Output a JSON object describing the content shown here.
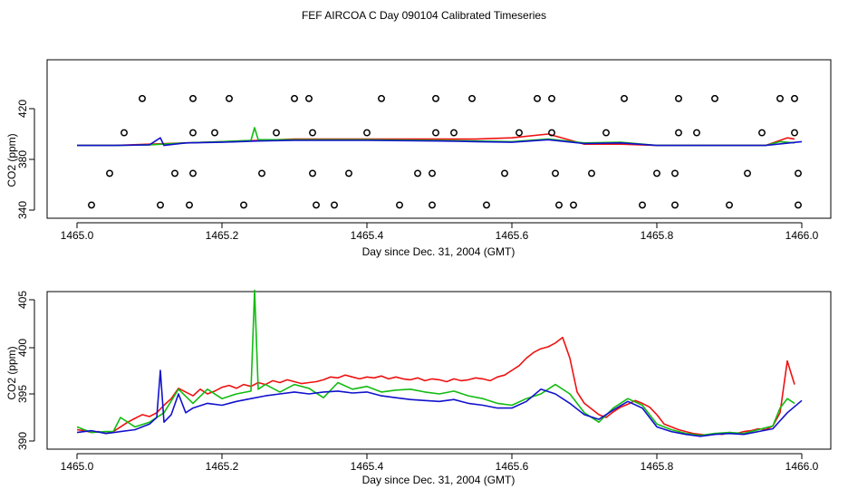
{
  "title": "FEF AIRCOA C  Day 090104  Calibrated Timeseries",
  "colors": {
    "red": "#ee1111",
    "green": "#11bb11",
    "blue": "#1111cc",
    "axis": "#000000",
    "marker": "#000000"
  },
  "chart_data": [
    {
      "type": "line",
      "xlabel": "Day since Dec. 31, 2004 (GMT)",
      "ylabel": "CO2 (ppm)",
      "xlim": [
        1465.0,
        1466.0
      ],
      "ylim": [
        340,
        440
      ],
      "xticks": [
        "1465.0",
        "1465.2",
        "1465.4",
        "1465.6",
        "1465.8",
        "1466.0"
      ],
      "yticks": [
        "340",
        "380",
        "420"
      ],
      "series": [
        {
          "color": "#ee1111",
          "key": "red",
          "x": [
            1465.0,
            1465.05,
            1465.1,
            1465.15,
            1465.2,
            1465.25,
            1465.3,
            1465.35,
            1465.4,
            1465.45,
            1465.5,
            1465.55,
            1465.6,
            1465.65,
            1465.7,
            1465.75,
            1465.8,
            1465.85,
            1465.9,
            1465.95,
            1465.98,
            1465.99
          ],
          "values": [
            391,
            391,
            392,
            393,
            394,
            395,
            396,
            396,
            396,
            396,
            396,
            396,
            397,
            400,
            392,
            392,
            391,
            391,
            391,
            391,
            397,
            396
          ]
        },
        {
          "color": "#11bb11",
          "key": "green",
          "x": [
            1465.0,
            1465.05,
            1465.1,
            1465.15,
            1465.2,
            1465.24,
            1465.245,
            1465.25,
            1465.3,
            1465.4,
            1465.5,
            1465.55,
            1465.6,
            1465.65,
            1465.7,
            1465.75,
            1465.8,
            1465.85,
            1465.9,
            1465.95,
            1465.97,
            1465.99
          ],
          "values": [
            391,
            391,
            391.5,
            393,
            394,
            395,
            405,
            395.5,
            395.5,
            395.5,
            395,
            394.5,
            394,
            396,
            393,
            393.5,
            391,
            391,
            391,
            391,
            394,
            393
          ]
        },
        {
          "color": "#1111cc",
          "key": "blue",
          "x": [
            1465.0,
            1465.05,
            1465.1,
            1465.115,
            1465.12,
            1465.15,
            1465.2,
            1465.25,
            1465.3,
            1465.4,
            1465.5,
            1465.55,
            1465.6,
            1465.65,
            1465.7,
            1465.75,
            1465.8,
            1465.85,
            1465.9,
            1465.95,
            1466.0
          ],
          "values": [
            391,
            391,
            391.5,
            397,
            391,
            393,
            393.5,
            394.5,
            395,
            395,
            394.5,
            394,
            393.5,
            395.5,
            392.5,
            393,
            391,
            391,
            391,
            391,
            394
          ]
        }
      ],
      "markers": [
        {
          "x": 1465.09,
          "y": 428
        },
        {
          "x": 1465.16,
          "y": 428
        },
        {
          "x": 1465.21,
          "y": 428
        },
        {
          "x": 1465.3,
          "y": 428
        },
        {
          "x": 1465.32,
          "y": 428
        },
        {
          "x": 1465.42,
          "y": 428
        },
        {
          "x": 1465.495,
          "y": 428
        },
        {
          "x": 1465.545,
          "y": 428
        },
        {
          "x": 1465.635,
          "y": 428
        },
        {
          "x": 1465.655,
          "y": 428
        },
        {
          "x": 1465.755,
          "y": 428
        },
        {
          "x": 1465.83,
          "y": 428
        },
        {
          "x": 1465.88,
          "y": 428
        },
        {
          "x": 1465.97,
          "y": 428
        },
        {
          "x": 1465.99,
          "y": 428
        },
        {
          "x": 1465.065,
          "y": 401
        },
        {
          "x": 1465.16,
          "y": 401
        },
        {
          "x": 1465.19,
          "y": 401
        },
        {
          "x": 1465.275,
          "y": 401
        },
        {
          "x": 1465.325,
          "y": 401
        },
        {
          "x": 1465.4,
          "y": 401
        },
        {
          "x": 1465.495,
          "y": 401
        },
        {
          "x": 1465.52,
          "y": 401
        },
        {
          "x": 1465.61,
          "y": 401
        },
        {
          "x": 1465.655,
          "y": 401
        },
        {
          "x": 1465.73,
          "y": 401
        },
        {
          "x": 1465.83,
          "y": 401
        },
        {
          "x": 1465.855,
          "y": 401
        },
        {
          "x": 1465.945,
          "y": 401
        },
        {
          "x": 1465.99,
          "y": 401
        },
        {
          "x": 1465.045,
          "y": 369
        },
        {
          "x": 1465.135,
          "y": 369
        },
        {
          "x": 1465.16,
          "y": 369
        },
        {
          "x": 1465.255,
          "y": 369
        },
        {
          "x": 1465.325,
          "y": 369
        },
        {
          "x": 1465.375,
          "y": 369
        },
        {
          "x": 1465.47,
          "y": 369
        },
        {
          "x": 1465.49,
          "y": 369
        },
        {
          "x": 1465.59,
          "y": 369
        },
        {
          "x": 1465.66,
          "y": 369
        },
        {
          "x": 1465.71,
          "y": 369
        },
        {
          "x": 1465.8,
          "y": 369
        },
        {
          "x": 1465.825,
          "y": 369
        },
        {
          "x": 1465.925,
          "y": 369
        },
        {
          "x": 1465.995,
          "y": 369
        },
        {
          "x": 1465.02,
          "y": 344
        },
        {
          "x": 1465.115,
          "y": 344
        },
        {
          "x": 1465.155,
          "y": 344
        },
        {
          "x": 1465.23,
          "y": 344
        },
        {
          "x": 1465.33,
          "y": 344
        },
        {
          "x": 1465.355,
          "y": 344
        },
        {
          "x": 1465.445,
          "y": 344
        },
        {
          "x": 1465.49,
          "y": 344
        },
        {
          "x": 1465.565,
          "y": 344
        },
        {
          "x": 1465.665,
          "y": 344
        },
        {
          "x": 1465.685,
          "y": 344
        },
        {
          "x": 1465.78,
          "y": 344
        },
        {
          "x": 1465.825,
          "y": 344
        },
        {
          "x": 1465.9,
          "y": 344
        },
        {
          "x": 1465.995,
          "y": 344
        }
      ]
    },
    {
      "type": "line",
      "xlabel": "Day since Dec. 31, 2004 (GMT)",
      "ylabel": "CO2 (ppm)",
      "xlim": [
        1465.0,
        1466.0
      ],
      "ylim": [
        390,
        405
      ],
      "xticks": [
        "1465.0",
        "1465.2",
        "1465.4",
        "1465.6",
        "1465.8",
        "1466.0"
      ],
      "yticks": [
        "390",
        "395",
        "400",
        "405"
      ],
      "series": [
        {
          "color": "#ee1111",
          "key": "red",
          "x": [
            1465.0,
            1465.01,
            1465.02,
            1465.03,
            1465.04,
            1465.05,
            1465.06,
            1465.07,
            1465.08,
            1465.09,
            1465.1,
            1465.11,
            1465.12,
            1465.13,
            1465.14,
            1465.15,
            1465.16,
            1465.17,
            1465.18,
            1465.19,
            1465.2,
            1465.21,
            1465.22,
            1465.23,
            1465.24,
            1465.25,
            1465.26,
            1465.27,
            1465.28,
            1465.29,
            1465.3,
            1465.31,
            1465.32,
            1465.33,
            1465.34,
            1465.35,
            1465.36,
            1465.37,
            1465.38,
            1465.39,
            1465.4,
            1465.41,
            1465.42,
            1465.43,
            1465.44,
            1465.45,
            1465.46,
            1465.47,
            1465.48,
            1465.49,
            1465.5,
            1465.51,
            1465.52,
            1465.53,
            1465.54,
            1465.55,
            1465.56,
            1465.57,
            1465.58,
            1465.59,
            1465.6,
            1465.61,
            1465.62,
            1465.63,
            1465.64,
            1465.65,
            1465.66,
            1465.67,
            1465.68,
            1465.69,
            1465.7,
            1465.71,
            1465.72,
            1465.73,
            1465.74,
            1465.75,
            1465.76,
            1465.77,
            1465.78,
            1465.79,
            1465.8,
            1465.81,
            1465.82,
            1465.83,
            1465.84,
            1465.85,
            1465.86,
            1465.87,
            1465.88,
            1465.89,
            1465.9,
            1465.91,
            1465.92,
            1465.93,
            1465.94,
            1465.95,
            1465.96,
            1465.97,
            1465.98,
            1465.99
          ],
          "values": [
            391.2,
            391.1,
            390.9,
            391.0,
            390.8,
            391.0,
            391.5,
            392.0,
            392.4,
            392.8,
            392.6,
            393.0,
            393.8,
            394.5,
            395.6,
            395.2,
            394.8,
            395.5,
            395.0,
            395.3,
            395.7,
            395.9,
            395.6,
            396.0,
            395.8,
            396.2,
            396.0,
            396.4,
            396.2,
            396.5,
            396.3,
            396.1,
            396.2,
            396.3,
            396.5,
            396.8,
            396.7,
            397.0,
            396.8,
            396.6,
            396.8,
            396.7,
            396.9,
            396.6,
            396.8,
            396.6,
            396.5,
            396.7,
            396.4,
            396.6,
            396.5,
            396.3,
            396.6,
            396.4,
            396.5,
            396.7,
            396.6,
            396.4,
            396.8,
            397.0,
            397.5,
            398.0,
            398.8,
            399.4,
            399.8,
            400.0,
            400.4,
            401.0,
            398.8,
            395.2,
            394.0,
            393.4,
            392.8,
            392.5,
            393.1,
            393.6,
            393.9,
            394.3,
            394.0,
            393.6,
            392.8,
            391.8,
            391.5,
            391.2,
            391.0,
            390.8,
            390.7,
            390.6,
            390.8,
            390.7,
            390.9,
            390.8,
            391.0,
            391.1,
            391.3,
            391.2,
            391.6,
            393.0,
            398.5,
            396.0
          ]
        },
        {
          "color": "#11bb11",
          "key": "green",
          "x": [
            1465.0,
            1465.02,
            1465.04,
            1465.05,
            1465.06,
            1465.08,
            1465.1,
            1465.12,
            1465.14,
            1465.16,
            1465.18,
            1465.2,
            1465.22,
            1465.24,
            1465.245,
            1465.25,
            1465.26,
            1465.28,
            1465.3,
            1465.32,
            1465.34,
            1465.36,
            1465.38,
            1465.4,
            1465.42,
            1465.44,
            1465.46,
            1465.48,
            1465.5,
            1465.52,
            1465.54,
            1465.56,
            1465.58,
            1465.6,
            1465.62,
            1465.64,
            1465.65,
            1465.66,
            1465.68,
            1465.7,
            1465.72,
            1465.74,
            1465.76,
            1465.78,
            1465.8,
            1465.82,
            1465.84,
            1465.86,
            1465.88,
            1465.9,
            1465.92,
            1465.94,
            1465.96,
            1465.97,
            1465.98,
            1465.99
          ],
          "values": [
            391.5,
            390.9,
            391.0,
            391.0,
            392.5,
            391.5,
            392.0,
            393.0,
            395.5,
            394.0,
            395.5,
            394.5,
            395.0,
            395.3,
            406.0,
            395.5,
            396.0,
            395.2,
            396.0,
            395.6,
            394.6,
            396.2,
            395.5,
            395.8,
            395.2,
            395.4,
            395.5,
            395.2,
            395.0,
            395.3,
            394.8,
            394.5,
            394.0,
            393.8,
            394.5,
            395.0,
            395.5,
            396.0,
            395.0,
            393.0,
            392.0,
            393.5,
            394.5,
            393.8,
            391.8,
            391.2,
            390.8,
            390.6,
            390.8,
            390.9,
            390.8,
            391.2,
            391.6,
            393.5,
            394.5,
            394.0
          ]
        },
        {
          "color": "#1111cc",
          "key": "blue",
          "x": [
            1465.0,
            1465.02,
            1465.04,
            1465.06,
            1465.08,
            1465.1,
            1465.11,
            1465.115,
            1465.12,
            1465.13,
            1465.14,
            1465.15,
            1465.16,
            1465.18,
            1465.2,
            1465.22,
            1465.24,
            1465.26,
            1465.28,
            1465.3,
            1465.32,
            1465.34,
            1465.36,
            1465.38,
            1465.4,
            1465.42,
            1465.44,
            1465.46,
            1465.48,
            1465.5,
            1465.52,
            1465.54,
            1465.56,
            1465.58,
            1465.6,
            1465.62,
            1465.64,
            1465.66,
            1465.68,
            1465.7,
            1465.72,
            1465.74,
            1465.76,
            1465.78,
            1465.8,
            1465.82,
            1465.84,
            1465.86,
            1465.88,
            1465.9,
            1465.92,
            1465.94,
            1465.96,
            1465.98,
            1466.0
          ],
          "values": [
            390.9,
            391.1,
            390.8,
            391.0,
            391.2,
            391.8,
            392.5,
            397.5,
            392.0,
            392.8,
            395.0,
            393.0,
            393.5,
            394.0,
            393.8,
            394.2,
            394.5,
            394.8,
            395.0,
            395.2,
            395.0,
            395.2,
            395.3,
            395.1,
            395.2,
            394.8,
            394.6,
            394.4,
            394.3,
            394.2,
            394.4,
            394.0,
            393.8,
            393.5,
            393.5,
            394.2,
            395.5,
            395.0,
            394.0,
            392.8,
            392.3,
            393.3,
            394.2,
            393.5,
            391.5,
            391.0,
            390.7,
            390.5,
            390.7,
            390.8,
            390.7,
            391.0,
            391.3,
            393.0,
            394.3
          ]
        }
      ]
    }
  ]
}
